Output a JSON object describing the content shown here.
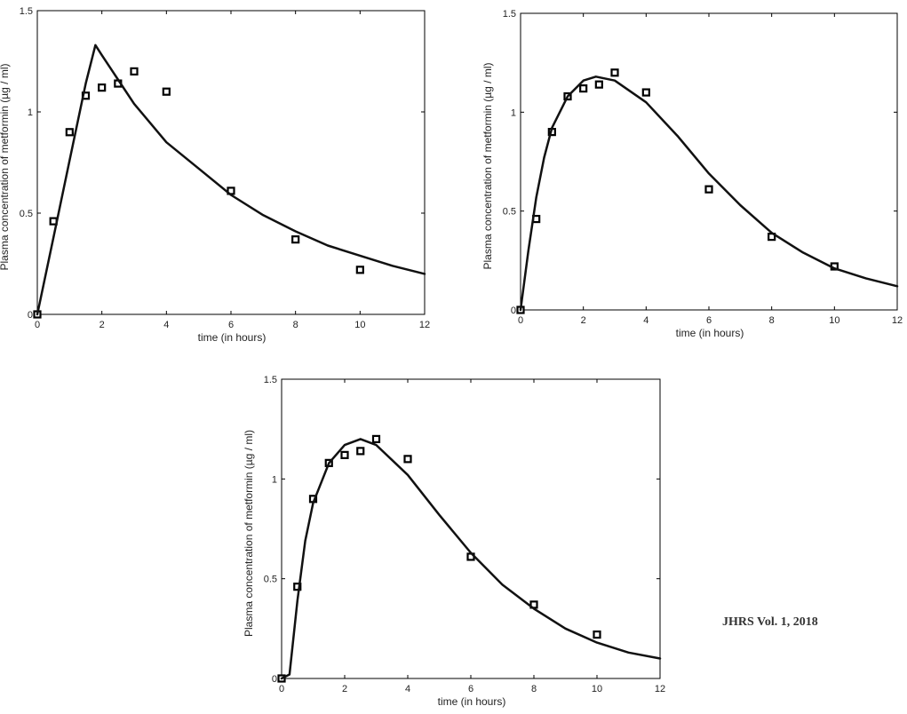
{
  "chart_data": [
    {
      "type": "line",
      "xlabel": "time (in hours)",
      "ylabel": "Plasma concentration of metformin (µg / ml)",
      "xlim": [
        0,
        12
      ],
      "ylim": [
        0,
        1.5
      ],
      "xticks": [
        0,
        2,
        4,
        6,
        8,
        10,
        12
      ],
      "yticks": [
        0,
        0.5,
        1,
        1.5
      ],
      "xtick_labels": [
        "0",
        "2",
        "4",
        "6",
        "8",
        "10",
        "12"
      ],
      "ytick_labels": [
        "0",
        "0.5",
        "1",
        "1.5"
      ],
      "grid": false,
      "series": [
        {
          "kind": "points",
          "marker": "square",
          "x": [
            0,
            0.5,
            1,
            1.5,
            2,
            2.5,
            3,
            4,
            6,
            8,
            10
          ],
          "y": [
            0,
            0.46,
            0.9,
            1.08,
            1.12,
            1.14,
            1.2,
            1.1,
            0.61,
            0.37,
            0.22
          ]
        },
        {
          "kind": "curve",
          "x": [
            0,
            0.5,
            1,
            1.5,
            1.8,
            2,
            2.5,
            3,
            4,
            5,
            6,
            7,
            8,
            9,
            10,
            11,
            12
          ],
          "y": [
            0,
            0.38,
            0.76,
            1.14,
            1.33,
            1.28,
            1.16,
            1.04,
            0.85,
            0.72,
            0.59,
            0.49,
            0.41,
            0.34,
            0.29,
            0.24,
            0.2
          ]
        }
      ]
    },
    {
      "type": "line",
      "xlabel": "time (in hours)",
      "ylabel": "Plasma concentration of metformin (µg / ml)",
      "xlim": [
        0,
        12
      ],
      "ylim": [
        0,
        1.5
      ],
      "xticks": [
        0,
        2,
        4,
        6,
        8,
        10,
        12
      ],
      "yticks": [
        0,
        0.5,
        1,
        1.5
      ],
      "xtick_labels": [
        "0",
        "2",
        "4",
        "6",
        "8",
        "10",
        "12"
      ],
      "ytick_labels": [
        "0",
        "0.5",
        "1",
        "1.5"
      ],
      "grid": false,
      "series": [
        {
          "kind": "points",
          "marker": "square",
          "x": [
            0,
            0.5,
            1,
            1.5,
            2,
            2.5,
            3,
            4,
            6,
            8,
            10
          ],
          "y": [
            0,
            0.46,
            0.9,
            1.08,
            1.12,
            1.14,
            1.2,
            1.1,
            0.61,
            0.37,
            0.22
          ]
        },
        {
          "kind": "curve",
          "x": [
            0,
            0.25,
            0.5,
            0.75,
            1,
            1.5,
            2,
            2.4,
            3,
            4,
            5,
            6,
            7,
            8,
            9,
            10,
            11,
            12
          ],
          "y": [
            0,
            0.3,
            0.57,
            0.77,
            0.92,
            1.08,
            1.16,
            1.18,
            1.16,
            1.05,
            0.88,
            0.69,
            0.53,
            0.39,
            0.29,
            0.21,
            0.16,
            0.12
          ]
        }
      ]
    },
    {
      "type": "line",
      "xlabel": "time (in hours)",
      "ylabel": "Plasma concentration of metformin (µg / ml)",
      "xlim": [
        0,
        12
      ],
      "ylim": [
        0,
        1.5
      ],
      "xticks": [
        0,
        2,
        4,
        6,
        8,
        10,
        12
      ],
      "yticks": [
        0,
        0.5,
        1,
        1.5
      ],
      "xtick_labels": [
        "0",
        "2",
        "4",
        "6",
        "8",
        "10",
        "12"
      ],
      "ytick_labels": [
        "0",
        "0.5",
        "1",
        "1.5"
      ],
      "grid": false,
      "series": [
        {
          "kind": "points",
          "marker": "square",
          "x": [
            0,
            0.5,
            1,
            1.5,
            2,
            2.5,
            3,
            4,
            6,
            8,
            10
          ],
          "y": [
            0,
            0.46,
            0.9,
            1.08,
            1.12,
            1.14,
            1.2,
            1.1,
            0.61,
            0.37,
            0.22
          ]
        },
        {
          "kind": "curve",
          "x": [
            0,
            0.25,
            0.5,
            0.75,
            1,
            1.5,
            2,
            2.5,
            3,
            4,
            5,
            6,
            7,
            8,
            9,
            10,
            11,
            12
          ],
          "y": [
            0,
            0.02,
            0.39,
            0.69,
            0.88,
            1.08,
            1.17,
            1.2,
            1.17,
            1.02,
            0.82,
            0.63,
            0.47,
            0.35,
            0.25,
            0.18,
            0.13,
            0.1
          ]
        }
      ]
    }
  ],
  "footer": {
    "source": "JHRS Vol. 1, 2018"
  }
}
